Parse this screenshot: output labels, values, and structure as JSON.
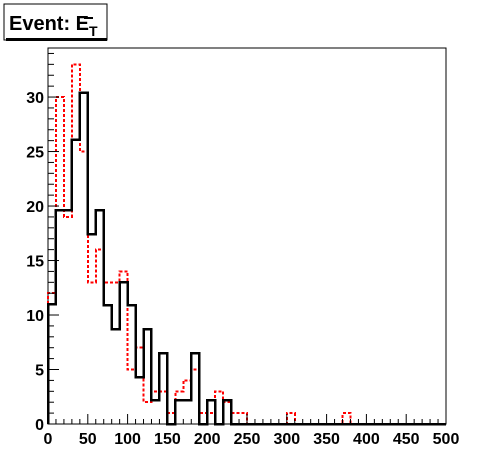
{
  "chart_data": {
    "type": "histogram",
    "title_main": "Event: E",
    "title_sub": "T",
    "xlim": [
      0,
      500
    ],
    "ylim": [
      0,
      34.5
    ],
    "x_ticks": [
      0,
      50,
      100,
      150,
      200,
      250,
      300,
      350,
      400,
      450,
      500
    ],
    "y_ticks": [
      0,
      5,
      10,
      15,
      20,
      25,
      30
    ],
    "bin_width": 10,
    "series": [
      {
        "style": "solid",
        "color": "#000000",
        "values": [
          11,
          19.6,
          19.6,
          26.1,
          30.4,
          17.4,
          19.6,
          10.9,
          8.7,
          13,
          10.9,
          4.3,
          8.7,
          2.2,
          6.5,
          0,
          2.2,
          2.2,
          6.5,
          0,
          2.2,
          0,
          2.2,
          0,
          0,
          0,
          0,
          0,
          0,
          0,
          0,
          0,
          0,
          0,
          0,
          0,
          0,
          0,
          0,
          0,
          0,
          0,
          0,
          0,
          0,
          0,
          0,
          0,
          0,
          0
        ]
      },
      {
        "style": "dashed",
        "color": "#ff0000",
        "values": [
          12,
          30,
          19,
          33,
          25,
          13,
          16,
          13,
          13,
          14,
          5,
          7,
          2,
          3,
          3,
          1,
          3,
          4,
          5,
          1,
          1,
          3,
          2,
          1,
          1,
          0,
          0,
          0,
          0,
          0,
          1,
          0,
          0,
          0,
          0,
          0,
          0,
          1,
          0,
          0,
          0,
          0,
          0,
          0,
          0,
          0,
          0,
          0,
          0,
          0
        ]
      }
    ]
  },
  "colors": {
    "background": "#ffffff",
    "frame": "#000000",
    "hist_primary": "#000000",
    "hist_overlay": "#ff0000"
  }
}
